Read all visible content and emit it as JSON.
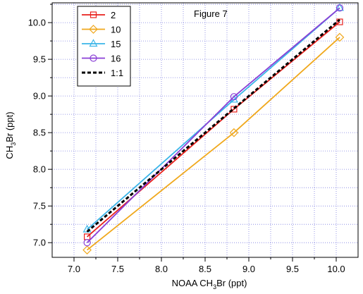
{
  "chart_data": {
    "type": "line",
    "title": "Figure 7",
    "xlabel": {
      "prefix": "NOAA CH",
      "sub": "3",
      "suffix": "Br (ppt)"
    },
    "ylabel": {
      "prefix": "CH",
      "sub": "3",
      "suffix": "Br (ppt)"
    },
    "xlim": [
      6.75,
      10.25
    ],
    "ylim": [
      6.8,
      10.27
    ],
    "xticks": [
      7.0,
      7.5,
      8.0,
      8.5,
      9.0,
      9.5,
      10.0
    ],
    "xtick_labels": [
      "7.0",
      "7.5",
      "8.0",
      "8.5",
      "9.0",
      "9.5",
      "10.0"
    ],
    "yticks": [
      7.0,
      7.5,
      8.0,
      8.5,
      9.0,
      9.5,
      10.0
    ],
    "ytick_labels": [
      "7.0",
      "7.5",
      "8.0",
      "8.5",
      "9.0",
      "9.5",
      "10.0"
    ],
    "grid": true,
    "legend_position": "top-left",
    "series": [
      {
        "name": "2",
        "color": "#e8201b",
        "marker": "square",
        "dashed": false,
        "x": [
          7.15,
          8.83,
          10.04
        ],
        "y": [
          7.08,
          8.82,
          10.01
        ]
      },
      {
        "name": "10",
        "color": "#f0a81c",
        "marker": "diamond",
        "dashed": false,
        "x": [
          7.15,
          8.83,
          10.04
        ],
        "y": [
          6.9,
          8.5,
          9.8
        ]
      },
      {
        "name": "15",
        "color": "#3ab5e8",
        "marker": "triangle",
        "dashed": false,
        "x": [
          7.15,
          8.83,
          10.04
        ],
        "y": [
          7.18,
          8.95,
          10.2
        ]
      },
      {
        "name": "16",
        "color": "#8a3fd6",
        "marker": "circle",
        "dashed": false,
        "x": [
          7.15,
          8.83,
          10.04
        ],
        "y": [
          7.0,
          8.99,
          10.2
        ]
      },
      {
        "name": "1:1",
        "color": "#000000",
        "marker": "none",
        "dashed": true,
        "x": [
          7.15,
          10.04
        ],
        "y": [
          7.15,
          10.04
        ]
      }
    ]
  }
}
